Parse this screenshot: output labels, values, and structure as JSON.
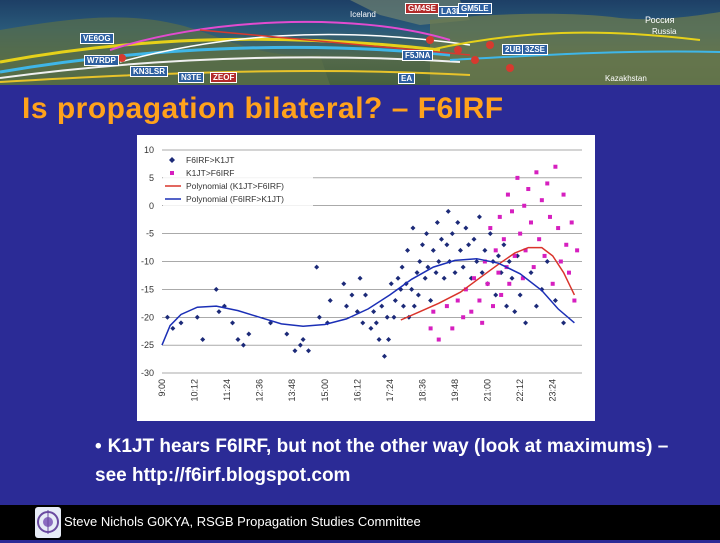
{
  "banner": {
    "map_labels": [
      "Iceland",
      "Россия",
      "Russia",
      "Kazakhstan"
    ],
    "callsigns": [
      "VE6OG",
      "W7RDP",
      "KN3LSR",
      "GM4SE",
      "LA3LJ",
      "GM5LE",
      "2UB",
      "3ZSE",
      "N3TE",
      "ZEOF",
      "EA",
      "F5JNA"
    ]
  },
  "slide": {
    "title": "Is propagation bilateral? – F6IRF",
    "bullet": "K1JT hears F6IRF, but not the other way (look at maximums) – see http://f6irf.blogspot.com",
    "footer": "Steve Nichols G0KYA, RSGB Propagation Studies Committee"
  },
  "chart_data": {
    "type": "scatter",
    "x_ticks": [
      "9:00",
      "10:12",
      "11:24",
      "12:36",
      "13:48",
      "15:00",
      "16:12",
      "17:24",
      "18:36",
      "19:48",
      "21:00",
      "22:12",
      "23:24"
    ],
    "y_ticks": [
      10,
      5,
      0,
      -5,
      -10,
      -15,
      -20,
      -25,
      -30
    ],
    "ylim": [
      -30,
      10
    ],
    "legend": [
      {
        "name": "F6IRF>K1JT",
        "color": "#1c2a78",
        "marker": "diamond"
      },
      {
        "name": "K1JT>F6IRF",
        "color": "#d61fbf",
        "marker": "square"
      },
      {
        "name": "Polynomial (K1JT>F6IRF)",
        "color": "#d9342b",
        "marker": "line"
      },
      {
        "name": "Polynomial (F6IRF>K1JT)",
        "color": "#1b2fb6",
        "marker": "line"
      }
    ],
    "legend_position": "top-left",
    "grid": true,
    "series": [
      {
        "name": "F6IRF>K1JT",
        "points": [
          [
            9.2,
            -20
          ],
          [
            9.4,
            -22
          ],
          [
            9.7,
            -21
          ],
          [
            10.3,
            -20
          ],
          [
            10.5,
            -24
          ],
          [
            11.0,
            -15
          ],
          [
            11.1,
            -19
          ],
          [
            11.3,
            -18
          ],
          [
            11.6,
            -21
          ],
          [
            11.8,
            -24
          ],
          [
            12.0,
            -25
          ],
          [
            12.2,
            -23
          ],
          [
            13.0,
            -21
          ],
          [
            13.6,
            -23
          ],
          [
            13.9,
            -26
          ],
          [
            14.1,
            -25
          ],
          [
            14.2,
            -24
          ],
          [
            14.4,
            -26
          ],
          [
            14.7,
            -11
          ],
          [
            14.8,
            -20
          ],
          [
            15.1,
            -21
          ],
          [
            15.2,
            -17
          ],
          [
            15.7,
            -14
          ],
          [
            15.8,
            -18
          ],
          [
            16.0,
            -16
          ],
          [
            16.2,
            -19
          ],
          [
            16.3,
            -13
          ],
          [
            16.4,
            -21
          ],
          [
            16.5,
            -16
          ],
          [
            16.7,
            -22
          ],
          [
            16.8,
            -19
          ],
          [
            16.9,
            -21
          ],
          [
            17.0,
            -24
          ],
          [
            17.1,
            -18
          ],
          [
            17.2,
            -27
          ],
          [
            17.3,
            -20
          ],
          [
            17.35,
            -24
          ],
          [
            17.45,
            -14
          ],
          [
            17.55,
            -20
          ],
          [
            17.6,
            -17
          ],
          [
            17.7,
            -13
          ],
          [
            17.8,
            -15
          ],
          [
            17.85,
            -11
          ],
          [
            17.9,
            -18
          ],
          [
            18.0,
            -14
          ],
          [
            18.05,
            -8
          ],
          [
            18.1,
            -20
          ],
          [
            18.2,
            -15
          ],
          [
            18.25,
            -4
          ],
          [
            18.3,
            -18
          ],
          [
            18.4,
            -12
          ],
          [
            18.45,
            -16
          ],
          [
            18.5,
            -10
          ],
          [
            18.6,
            -7
          ],
          [
            18.7,
            -13
          ],
          [
            18.75,
            -5
          ],
          [
            18.8,
            -11
          ],
          [
            18.9,
            -17
          ],
          [
            19.0,
            -8
          ],
          [
            19.1,
            -12
          ],
          [
            19.15,
            -3
          ],
          [
            19.2,
            -10
          ],
          [
            19.3,
            -6
          ],
          [
            19.4,
            -13
          ],
          [
            19.5,
            -7
          ],
          [
            19.55,
            -1
          ],
          [
            19.6,
            -10
          ],
          [
            19.7,
            -5
          ],
          [
            19.8,
            -12
          ],
          [
            19.9,
            -3
          ],
          [
            20.0,
            -8
          ],
          [
            20.1,
            -11
          ],
          [
            20.2,
            -4
          ],
          [
            20.3,
            -7
          ],
          [
            20.4,
            -13
          ],
          [
            20.5,
            -6
          ],
          [
            20.6,
            -10
          ],
          [
            20.7,
            -2
          ],
          [
            20.8,
            -12
          ],
          [
            20.9,
            -8
          ],
          [
            21.0,
            -14
          ],
          [
            21.1,
            -5
          ],
          [
            21.2,
            -10
          ],
          [
            21.3,
            -16
          ],
          [
            21.4,
            -9
          ],
          [
            21.5,
            -12
          ],
          [
            21.6,
            -7
          ],
          [
            21.7,
            -18
          ],
          [
            21.8,
            -10
          ],
          [
            21.9,
            -13
          ],
          [
            22.0,
            -19
          ],
          [
            22.1,
            -9
          ],
          [
            22.2,
            -16
          ],
          [
            22.4,
            -21
          ],
          [
            22.6,
            -12
          ],
          [
            22.8,
            -18
          ],
          [
            23.0,
            -15
          ],
          [
            23.2,
            -10
          ],
          [
            23.5,
            -17
          ],
          [
            23.8,
            -21
          ]
        ]
      },
      {
        "name": "K1JT>F6IRF",
        "points": [
          [
            18.9,
            -22
          ],
          [
            19.0,
            -19
          ],
          [
            19.2,
            -24
          ],
          [
            19.5,
            -18
          ],
          [
            19.7,
            -22
          ],
          [
            19.9,
            -17
          ],
          [
            20.1,
            -20
          ],
          [
            20.2,
            -15
          ],
          [
            20.4,
            -19
          ],
          [
            20.5,
            -13
          ],
          [
            20.7,
            -17
          ],
          [
            20.8,
            -21
          ],
          [
            20.9,
            -10
          ],
          [
            21.0,
            -14
          ],
          [
            21.1,
            -4
          ],
          [
            21.2,
            -18
          ],
          [
            21.3,
            -8
          ],
          [
            21.4,
            -12
          ],
          [
            21.45,
            -2
          ],
          [
            21.5,
            -16
          ],
          [
            21.6,
            -6
          ],
          [
            21.7,
            -11
          ],
          [
            21.75,
            2
          ],
          [
            21.8,
            -14
          ],
          [
            21.9,
            -1
          ],
          [
            22.0,
            -9
          ],
          [
            22.1,
            5
          ],
          [
            22.2,
            -5
          ],
          [
            22.3,
            -13
          ],
          [
            22.35,
            0
          ],
          [
            22.4,
            -8
          ],
          [
            22.5,
            3
          ],
          [
            22.6,
            -3
          ],
          [
            22.7,
            -11
          ],
          [
            22.8,
            6
          ],
          [
            22.9,
            -6
          ],
          [
            23.0,
            1
          ],
          [
            23.1,
            -9
          ],
          [
            23.2,
            4
          ],
          [
            23.3,
            -2
          ],
          [
            23.4,
            -14
          ],
          [
            23.5,
            7
          ],
          [
            23.6,
            -4
          ],
          [
            23.7,
            -10
          ],
          [
            23.8,
            2
          ],
          [
            23.9,
            -7
          ],
          [
            24.0,
            -12
          ],
          [
            24.1,
            -3
          ],
          [
            24.2,
            -17
          ],
          [
            24.3,
            -8
          ]
        ]
      }
    ],
    "trend_K1JT_F6IRF": [
      [
        17.8,
        -20.5
      ],
      [
        18.5,
        -19
      ],
      [
        19.2,
        -17.5
      ],
      [
        20.0,
        -15.5
      ],
      [
        20.7,
        -13
      ],
      [
        21.4,
        -10.5
      ],
      [
        22.0,
        -8.5
      ],
      [
        22.5,
        -7.5
      ],
      [
        23.0,
        -7.5
      ],
      [
        23.4,
        -9
      ],
      [
        23.8,
        -12
      ],
      [
        24.2,
        -16
      ]
    ],
    "trend_F6IRF_K1JT": [
      [
        9.0,
        -25
      ],
      [
        9.3,
        -21.5
      ],
      [
        9.7,
        -19.5
      ],
      [
        10.3,
        -18.2
      ],
      [
        11.0,
        -18
      ],
      [
        11.8,
        -18.8
      ],
      [
        12.6,
        -20
      ],
      [
        13.4,
        -21.2
      ],
      [
        14.2,
        -21.6
      ],
      [
        15.0,
        -21.3
      ],
      [
        15.8,
        -20.3
      ],
      [
        16.6,
        -18.5
      ],
      [
        17.4,
        -16
      ],
      [
        18.2,
        -13.2
      ],
      [
        19.0,
        -11
      ],
      [
        19.8,
        -9.8
      ],
      [
        20.6,
        -9.5
      ],
      [
        21.4,
        -10.3
      ],
      [
        22.2,
        -12.2
      ],
      [
        23.0,
        -15.2
      ],
      [
        23.6,
        -18.5
      ],
      [
        24.2,
        -21
      ]
    ]
  }
}
